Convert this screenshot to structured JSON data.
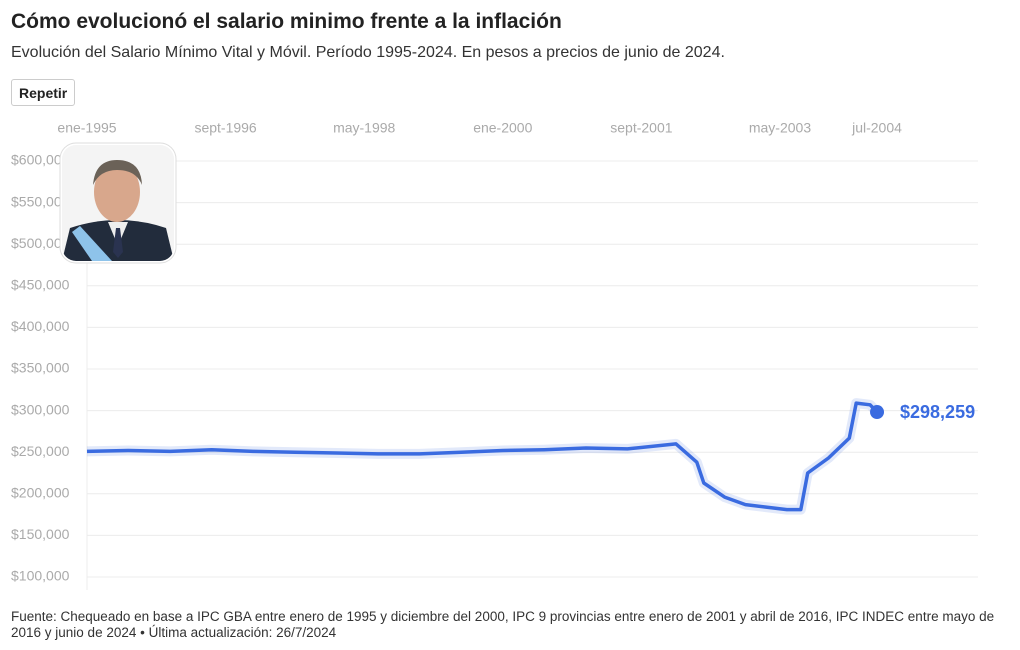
{
  "header": {
    "title": "Cómo evolucionó el salario minimo frente a la inflación",
    "subtitle": "Evolución del Salario Mínimo Vital y Móvil. Período 1995-2024. En pesos a precios de junio de 2024.",
    "button": "Repetir"
  },
  "chart_data": {
    "type": "line",
    "x": [
      "1995-01",
      "1995-07",
      "1996-01",
      "1996-07",
      "1997-01",
      "1997-07",
      "1998-01",
      "1998-07",
      "1999-01",
      "1999-07",
      "2000-01",
      "2000-07",
      "2001-01",
      "2001-07",
      "2002-02",
      "2002-05",
      "2002-06",
      "2002-09",
      "2002-12",
      "2003-03",
      "2003-06",
      "2003-08",
      "2003-09",
      "2003-12",
      "2004-03",
      "2004-04",
      "2004-06",
      "2004-07"
    ],
    "series": [
      {
        "color": "#3a6be0",
        "values": [
          251000,
          252000,
          251000,
          253000,
          251000,
          250000,
          249000,
          248000,
          248000,
          250000,
          252000,
          253000,
          255000,
          254000,
          260000,
          238000,
          213000,
          196000,
          187000,
          184000,
          181000,
          181000,
          225000,
          243000,
          267000,
          309000,
          307000,
          298259
        ],
        "value_labels": [
          null,
          null,
          null,
          null,
          null,
          null,
          null,
          null,
          null,
          null,
          null,
          null,
          null,
          null,
          null,
          null,
          null,
          null,
          null,
          null,
          null,
          null,
          null,
          null,
          null,
          null,
          null,
          "$298,259"
        ]
      }
    ],
    "ylim": [
      100000,
      600000
    ],
    "yticks": [
      {
        "value": 100000,
        "label": "$100,000"
      },
      {
        "value": 150000,
        "label": "$150,000"
      },
      {
        "value": 200000,
        "label": "$200,000"
      },
      {
        "value": 250000,
        "label": "$250,000"
      },
      {
        "value": 300000,
        "label": "$300,000"
      },
      {
        "value": 350000,
        "label": "$350,000"
      },
      {
        "value": 400000,
        "label": "$400,000"
      },
      {
        "value": 450000,
        "label": "$450,000"
      },
      {
        "value": 500000,
        "label": "$500,000"
      },
      {
        "value": 550000,
        "label": "$550,000"
      },
      {
        "value": 600000,
        "label": "$600,000"
      }
    ],
    "xticks": [
      {
        "value": "1995-01",
        "label": "ene-1995"
      },
      {
        "value": "1996-09",
        "label": "sept-1996"
      },
      {
        "value": "1998-05",
        "label": "may-1998"
      },
      {
        "value": "2000-01",
        "label": "ene-2000"
      },
      {
        "value": "2001-09",
        "label": "sept-2001"
      },
      {
        "value": "2003-05",
        "label": "may-2003"
      },
      {
        "value": "2004-07",
        "label": "jul-2004"
      }
    ],
    "grid": true
  },
  "footer": {
    "source": "Fuente: Chequeado en base a IPC GBA entre enero de 1995 y diciembre del 2000, IPC 9 provincias entre enero de 2001 y abril de 2016, IPC INDEC entre mayo de 2016 y junio de 2024 • Última actualización: 26/7/2024"
  }
}
